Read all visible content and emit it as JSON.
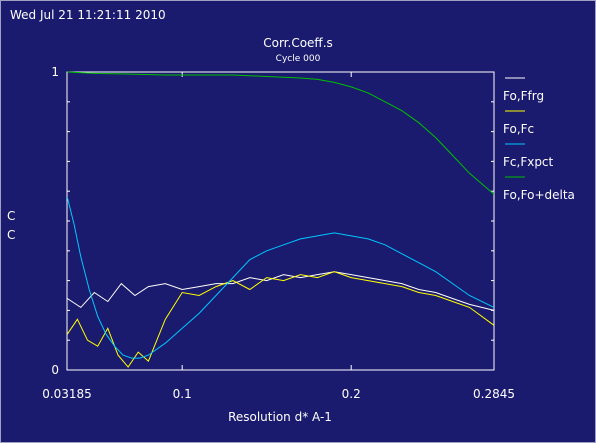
{
  "timestamp": "Wed Jul 21 11:21:11 2010",
  "colors": {
    "background": "#1a1a6e",
    "axes": "#ffffff",
    "text": "#ffffff",
    "series": [
      "#ffffff",
      "#ffff00",
      "#00c8ff",
      "#00c000"
    ]
  },
  "chart_data": {
    "type": "line",
    "title": "Corr.Coeff.s",
    "subtitle": "Cycle 000",
    "xlabel": "Resolution d* A-1",
    "ylabel": "C\nC",
    "xlim": [
      0.03185,
      0.2845
    ],
    "ylim": [
      0,
      1
    ],
    "x_ticks": [
      "0.03185",
      "0.1",
      "0.2",
      "0.2845"
    ],
    "x_tick_values": [
      0.03185,
      0.1,
      0.2,
      0.2845
    ],
    "y_ticks": [
      "0",
      "1"
    ],
    "y_tick_values": [
      0,
      1
    ],
    "legend_position": "right",
    "series": [
      {
        "name": "Fo,Ffrg",
        "x": [
          0.032,
          0.04,
          0.048,
          0.056,
          0.064,
          0.072,
          0.08,
          0.09,
          0.1,
          0.11,
          0.12,
          0.13,
          0.14,
          0.15,
          0.16,
          0.17,
          0.18,
          0.19,
          0.2,
          0.21,
          0.22,
          0.23,
          0.24,
          0.25,
          0.26,
          0.27,
          0.2845
        ],
        "y": [
          0.24,
          0.21,
          0.26,
          0.23,
          0.29,
          0.25,
          0.28,
          0.29,
          0.27,
          0.28,
          0.29,
          0.29,
          0.31,
          0.3,
          0.32,
          0.31,
          0.32,
          0.33,
          0.32,
          0.31,
          0.3,
          0.29,
          0.27,
          0.26,
          0.24,
          0.22,
          0.2
        ]
      },
      {
        "name": "Fo,Fc",
        "x": [
          0.032,
          0.038,
          0.044,
          0.05,
          0.056,
          0.062,
          0.068,
          0.074,
          0.08,
          0.09,
          0.1,
          0.11,
          0.12,
          0.13,
          0.14,
          0.15,
          0.16,
          0.17,
          0.18,
          0.19,
          0.2,
          0.21,
          0.22,
          0.23,
          0.24,
          0.25,
          0.26,
          0.27,
          0.2845
        ],
        "y": [
          0.12,
          0.17,
          0.1,
          0.08,
          0.14,
          0.05,
          0.01,
          0.06,
          0.03,
          0.17,
          0.26,
          0.25,
          0.28,
          0.3,
          0.27,
          0.31,
          0.3,
          0.32,
          0.31,
          0.33,
          0.31,
          0.3,
          0.29,
          0.28,
          0.26,
          0.25,
          0.23,
          0.21,
          0.15
        ]
      },
      {
        "name": "Fc,Fxpct",
        "x": [
          0.032,
          0.036,
          0.04,
          0.045,
          0.05,
          0.055,
          0.06,
          0.065,
          0.07,
          0.075,
          0.08,
          0.09,
          0.1,
          0.11,
          0.12,
          0.13,
          0.14,
          0.15,
          0.16,
          0.17,
          0.18,
          0.19,
          0.2,
          0.21,
          0.22,
          0.23,
          0.24,
          0.25,
          0.26,
          0.27,
          0.2845
        ],
        "y": [
          0.58,
          0.49,
          0.38,
          0.27,
          0.18,
          0.12,
          0.08,
          0.05,
          0.04,
          0.04,
          0.05,
          0.09,
          0.14,
          0.19,
          0.25,
          0.31,
          0.37,
          0.4,
          0.42,
          0.44,
          0.45,
          0.46,
          0.45,
          0.44,
          0.42,
          0.39,
          0.36,
          0.33,
          0.29,
          0.25,
          0.21
        ]
      },
      {
        "name": "Fo,Fo+delta",
        "x": [
          0.032,
          0.05,
          0.07,
          0.09,
          0.11,
          0.13,
          0.15,
          0.17,
          0.18,
          0.19,
          0.2,
          0.21,
          0.22,
          0.23,
          0.24,
          0.25,
          0.26,
          0.27,
          0.2845
        ],
        "y": [
          1.0,
          0.995,
          0.993,
          0.99,
          0.99,
          0.99,
          0.985,
          0.98,
          0.975,
          0.965,
          0.95,
          0.93,
          0.9,
          0.87,
          0.83,
          0.78,
          0.72,
          0.66,
          0.59
        ]
      }
    ]
  }
}
